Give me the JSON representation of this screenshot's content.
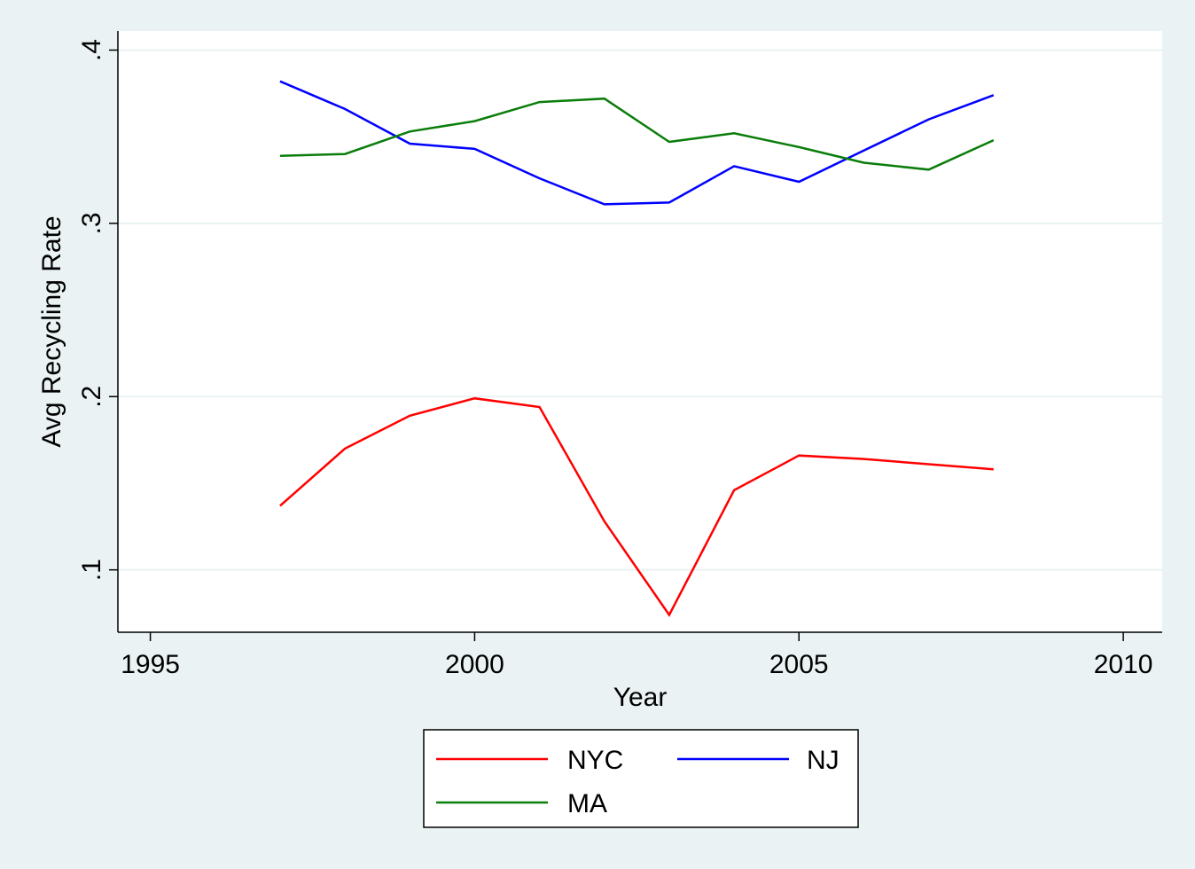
{
  "chart_data": {
    "type": "line",
    "title": "",
    "xlabel": "Year",
    "ylabel": "Avg Recycling Rate",
    "xlim": [
      1994.5,
      2010.6
    ],
    "ylim": [
      0.064,
      0.411
    ],
    "x_ticks": [
      "1995",
      "2000",
      "2005",
      "2010"
    ],
    "x_tick_values": [
      1995,
      2000,
      2005,
      2010
    ],
    "y_ticks": [
      ".1",
      ".2",
      ".3",
      ".4"
    ],
    "y_tick_values": [
      0.1,
      0.2,
      0.3,
      0.4
    ],
    "grid": "horizontal",
    "legend_position": "bottom",
    "x": [
      1997,
      1998,
      1999,
      2000,
      2001,
      2002,
      2003,
      2004,
      2005,
      2006,
      2007,
      2008
    ],
    "series": [
      {
        "name": "NYC",
        "color": "#ff0000",
        "values": [
          0.137,
          0.17,
          0.189,
          0.199,
          0.194,
          0.128,
          0.074,
          0.146,
          0.166,
          0.164,
          0.161,
          0.158
        ]
      },
      {
        "name": "NJ",
        "color": "#0000ff",
        "values": [
          0.382,
          0.366,
          0.346,
          0.343,
          0.326,
          0.311,
          0.312,
          0.333,
          0.324,
          0.342,
          0.36,
          0.374
        ]
      },
      {
        "name": "MA",
        "color": "#0a7d0a",
        "values": [
          0.339,
          0.34,
          0.353,
          0.359,
          0.37,
          0.372,
          0.347,
          0.352,
          0.344,
          0.335,
          0.331,
          0.348
        ]
      }
    ]
  }
}
